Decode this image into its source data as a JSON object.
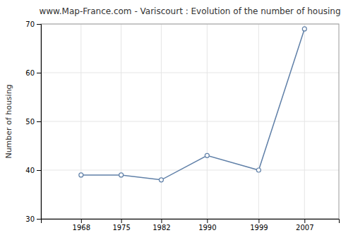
{
  "chart_data": {
    "type": "line",
    "title": "www.Map-France.com - Variscourt : Evolution of the number of housing",
    "ylabel": "Number of housing",
    "x": [
      1968,
      1975,
      1982,
      1990,
      1999,
      2007
    ],
    "values": [
      39,
      39,
      38,
      43,
      40,
      69
    ],
    "xlim": [
      1961,
      2013
    ],
    "ylim": [
      30,
      70
    ],
    "xticks": [
      1968,
      1975,
      1982,
      1990,
      1999,
      2007
    ],
    "yticks": [
      30,
      40,
      50,
      60,
      70
    ],
    "color": "#6080a8",
    "marker": "circle",
    "grid": true
  }
}
